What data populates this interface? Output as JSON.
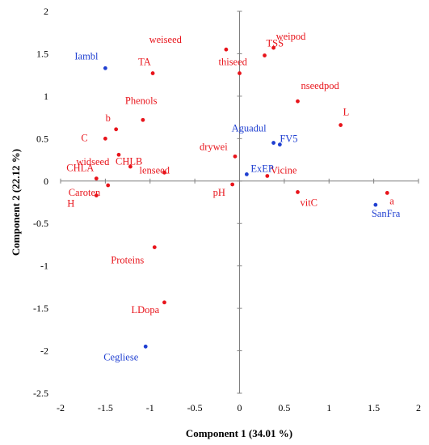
{
  "chart_data": {
    "type": "scatter",
    "xlabel": "Component 1 (34.01 %)",
    "ylabel": "Component 2 (22.12 %)",
    "xlim": [
      -2,
      2
    ],
    "ylim": [
      -2.5,
      2
    ],
    "x_ticks": [
      "-2",
      "-1.5",
      "-1",
      "-0.5",
      "0",
      "0.5",
      "1",
      "1.5",
      "2"
    ],
    "y_ticks": [
      "2",
      "1.5",
      "1",
      "0.5",
      "0",
      "-0.5",
      "-1",
      "-1.5",
      "-2",
      "-2.5"
    ],
    "grid": false,
    "colors": {
      "variables": "#e8141b",
      "genotypes": "#1f3fd1"
    },
    "series": [
      {
        "group": "variables",
        "points": [
          {
            "label": "weiseed",
            "x": -0.15,
            "y": 1.55
          },
          {
            "label": "TSS",
            "x": 0.28,
            "y": 1.48
          },
          {
            "label": "weipod",
            "x": 0.38,
            "y": 1.57
          },
          {
            "label": "thiseed",
            "x": 0.0,
            "y": 1.27
          },
          {
            "label": "TA",
            "x": -0.97,
            "y": 1.27
          },
          {
            "label": "nseedpod",
            "x": 0.65,
            "y": 0.94
          },
          {
            "label": "L",
            "x": 1.13,
            "y": 0.66
          },
          {
            "label": "Phenols",
            "x": -1.08,
            "y": 0.72
          },
          {
            "label": "b",
            "x": -1.38,
            "y": 0.61
          },
          {
            "label": "C",
            "x": -1.5,
            "y": 0.5
          },
          {
            "label": "CHLB",
            "x": -1.35,
            "y": 0.31
          },
          {
            "label": "widseed",
            "x": -1.22,
            "y": 0.17
          },
          {
            "label": "lenseed",
            "x": -0.84,
            "y": 0.1
          },
          {
            "label": "drywei",
            "x": -0.05,
            "y": 0.29
          },
          {
            "label": "CHLA",
            "x": -1.6,
            "y": 0.03
          },
          {
            "label": "Caroten",
            "x": -1.47,
            "y": -0.05
          },
          {
            "label": "H",
            "x": -1.6,
            "y": -0.17
          },
          {
            "label": "Vicine",
            "x": 0.31,
            "y": 0.06
          },
          {
            "label": "pH",
            "x": -0.08,
            "y": -0.04
          },
          {
            "label": "vitC",
            "x": 0.65,
            "y": -0.13
          },
          {
            "label": "a",
            "x": 1.65,
            "y": -0.14
          },
          {
            "label": "Proteins",
            "x": -0.95,
            "y": -0.78
          },
          {
            "label": "LDopa",
            "x": -0.84,
            "y": -1.43
          }
        ]
      },
      {
        "group": "genotypes",
        "points": [
          {
            "label": "Iambl",
            "x": -1.5,
            "y": 1.33
          },
          {
            "label": "Aguadul",
            "x": 0.38,
            "y": 0.45
          },
          {
            "label": "FV5",
            "x": 0.45,
            "y": 0.43
          },
          {
            "label": "ExEP",
            "x": 0.08,
            "y": 0.08
          },
          {
            "label": "SanFra",
            "x": 1.52,
            "y": -0.28
          },
          {
            "label": "Cegliese",
            "x": -1.05,
            "y": -1.95
          }
        ]
      }
    ]
  }
}
